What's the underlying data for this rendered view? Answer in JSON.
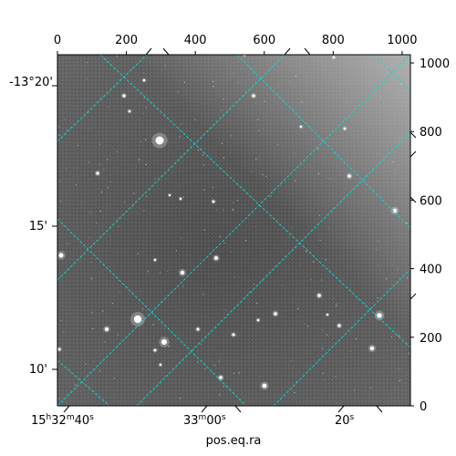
{
  "image": {
    "kind": "astronomical-grayscale-frame",
    "background_color": "#5e5e5e",
    "grid_color": "#00e5e5"
  },
  "axes": {
    "xlabel": "pos.eq.ra",
    "x_pixel_ticks": [
      "0",
      "200",
      "400",
      "600",
      "800",
      "1000"
    ],
    "y_pixel_ticks": [
      "0",
      "200",
      "400",
      "600",
      "800",
      "1000"
    ],
    "ra_ticks": [
      {
        "main": "15",
        "sup1": "h",
        "mid": "32",
        "sup2": "m",
        "end": "40",
        "sup3": "s"
      },
      {
        "main": "33",
        "sup1": "m",
        "mid": "00",
        "sup2": "s",
        "end": "",
        "sup3": ""
      },
      {
        "main": "20",
        "sup1": "s",
        "mid": "",
        "sup2": "",
        "end": "",
        "sup3": ""
      }
    ],
    "dec_ticks": [
      "-13°20'",
      "15'",
      "10'"
    ]
  }
}
